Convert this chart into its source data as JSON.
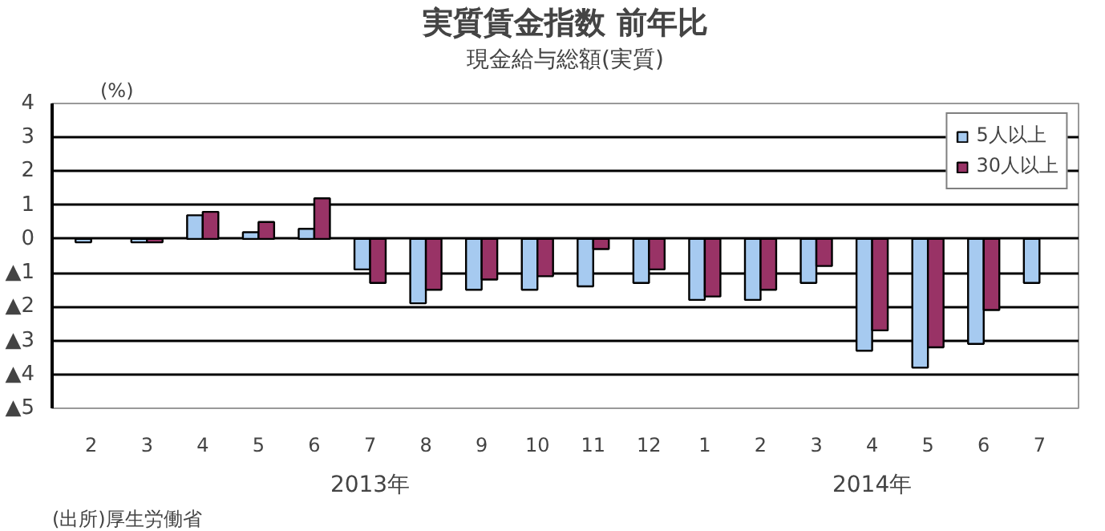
{
  "chart_data": {
    "type": "bar",
    "title": "実質賃金指数 前年比",
    "subtitle": "現金給与総額(実質)",
    "ylabel": "(%)",
    "categories": [
      "2",
      "3",
      "4",
      "5",
      "6",
      "7",
      "8",
      "9",
      "10",
      "11",
      "12",
      "1",
      "2",
      "3",
      "4",
      "5",
      "6",
      "7"
    ],
    "series": [
      {
        "name": "5人以上",
        "color": "#a6caf0",
        "values": [
          -0.1,
          -0.1,
          0.7,
          0.2,
          0.3,
          -0.9,
          -1.9,
          -1.5,
          -1.5,
          -1.4,
          -1.3,
          -1.8,
          -1.8,
          -1.3,
          -3.3,
          -3.8,
          -3.1,
          -1.3
        ]
      },
      {
        "name": "30人以上",
        "color": "#993366",
        "values": [
          null,
          -0.1,
          0.8,
          0.5,
          1.2,
          -1.3,
          -1.5,
          -1.2,
          -1.1,
          -0.3,
          -0.9,
          -1.7,
          -1.5,
          -0.8,
          -2.7,
          -3.2,
          -2.1,
          null
        ]
      }
    ],
    "ylim": [
      -5,
      4
    ],
    "yticks": [
      {
        "value": -5,
        "label": "▲5"
      },
      {
        "value": -4,
        "label": "▲4"
      },
      {
        "value": -3,
        "label": "▲3"
      },
      {
        "value": -2,
        "label": "▲2"
      },
      {
        "value": -1,
        "label": "▲1"
      },
      0,
      1,
      2,
      3,
      4
    ],
    "grid": "y",
    "legend": "top right",
    "annotations": [
      "2013年",
      "2014年",
      "(出所)厚生労働省"
    ]
  }
}
